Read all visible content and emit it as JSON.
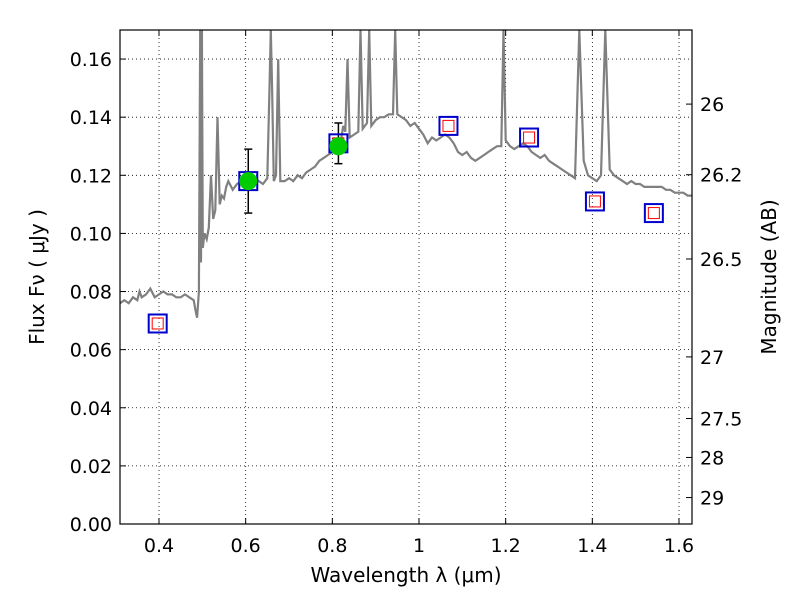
{
  "chart_data": {
    "type": "line",
    "xlabel": "Wavelength  λ (μm)",
    "ylabel": "Flux  Fν  ( μJy )",
    "y2label": "Magnitude (AB)",
    "xlim": [
      0.31,
      1.63
    ],
    "ylim": [
      0.0,
      0.17
    ],
    "grid": true,
    "x_ticks": [
      0.4,
      0.6,
      0.8,
      1.0,
      1.2,
      1.4,
      1.6
    ],
    "x_tick_labels": [
      "0.4",
      "0.6",
      "0.8",
      "1",
      "1.2",
      "1.4",
      "1.6"
    ],
    "y_ticks": [
      0.0,
      0.02,
      0.04,
      0.06,
      0.08,
      0.1,
      0.12,
      0.14,
      0.16
    ],
    "y_tick_labels": [
      "0.00",
      "0.02",
      "0.04",
      "0.06",
      "0.08",
      "0.10",
      "0.12",
      "0.14",
      "0.16"
    ],
    "y2_ticks": [
      {
        "label": "26",
        "flux": 0.1445
      },
      {
        "label": "26.2",
        "flux": 0.1202
      },
      {
        "label": "26.5",
        "flux": 0.0912
      },
      {
        "label": "27",
        "flux": 0.0575
      },
      {
        "label": "27.5",
        "flux": 0.0363
      },
      {
        "label": "28",
        "flux": 0.0229
      },
      {
        "label": "29",
        "flux": 0.0091
      }
    ],
    "colors": {
      "spectrum": "#808080",
      "measured_face": "#00cc00",
      "box_outer": "#0000cc",
      "box_inner": "#ff0000",
      "errorbar": "#000000"
    },
    "series": [
      {
        "kind": "spectrum",
        "points": [
          [
            0.31,
            0.076
          ],
          [
            0.32,
            0.077
          ],
          [
            0.33,
            0.076
          ],
          [
            0.34,
            0.078
          ],
          [
            0.35,
            0.077
          ],
          [
            0.355,
            0.08
          ],
          [
            0.36,
            0.078
          ],
          [
            0.37,
            0.079
          ],
          [
            0.38,
            0.081
          ],
          [
            0.39,
            0.078
          ],
          [
            0.4,
            0.079
          ],
          [
            0.41,
            0.08
          ],
          [
            0.42,
            0.079
          ],
          [
            0.43,
            0.079
          ],
          [
            0.44,
            0.078
          ],
          [
            0.45,
            0.078
          ],
          [
            0.46,
            0.079
          ],
          [
            0.47,
            0.078
          ],
          [
            0.48,
            0.077
          ],
          [
            0.485,
            0.073
          ],
          [
            0.488,
            0.071
          ],
          [
            0.492,
            0.08
          ],
          [
            0.495,
            0.17
          ],
          [
            0.497,
            0.09
          ],
          [
            0.499,
            0.17
          ],
          [
            0.501,
            0.095
          ],
          [
            0.505,
            0.1
          ],
          [
            0.51,
            0.098
          ],
          [
            0.515,
            0.102
          ],
          [
            0.52,
            0.12
          ],
          [
            0.525,
            0.105
          ],
          [
            0.53,
            0.108
          ],
          [
            0.535,
            0.14
          ],
          [
            0.54,
            0.11
          ],
          [
            0.545,
            0.113
          ],
          [
            0.55,
            0.112
          ],
          [
            0.555,
            0.116
          ],
          [
            0.56,
            0.118
          ],
          [
            0.57,
            0.115
          ],
          [
            0.58,
            0.117
          ],
          [
            0.59,
            0.118
          ],
          [
            0.6,
            0.116
          ],
          [
            0.61,
            0.118
          ],
          [
            0.62,
            0.119
          ],
          [
            0.63,
            0.118
          ],
          [
            0.64,
            0.117
          ],
          [
            0.65,
            0.119
          ],
          [
            0.655,
            0.15
          ],
          [
            0.658,
            0.17
          ],
          [
            0.661,
            0.15
          ],
          [
            0.665,
            0.118
          ],
          [
            0.67,
            0.12
          ],
          [
            0.675,
            0.16
          ],
          [
            0.68,
            0.118
          ],
          [
            0.69,
            0.118
          ],
          [
            0.7,
            0.119
          ],
          [
            0.71,
            0.118
          ],
          [
            0.72,
            0.12
          ],
          [
            0.73,
            0.119
          ],
          [
            0.74,
            0.121
          ],
          [
            0.75,
            0.122
          ],
          [
            0.76,
            0.123
          ],
          [
            0.77,
            0.125
          ],
          [
            0.78,
            0.126
          ],
          [
            0.79,
            0.127
          ],
          [
            0.8,
            0.128
          ],
          [
            0.81,
            0.13
          ],
          [
            0.82,
            0.132
          ],
          [
            0.825,
            0.137
          ],
          [
            0.83,
            0.135
          ],
          [
            0.835,
            0.16
          ],
          [
            0.84,
            0.133
          ],
          [
            0.85,
            0.134
          ],
          [
            0.86,
            0.135
          ],
          [
            0.865,
            0.17
          ],
          [
            0.87,
            0.136
          ],
          [
            0.88,
            0.138
          ],
          [
            0.885,
            0.17
          ],
          [
            0.89,
            0.137
          ],
          [
            0.9,
            0.139
          ],
          [
            0.91,
            0.14
          ],
          [
            0.92,
            0.14
          ],
          [
            0.93,
            0.141
          ],
          [
            0.94,
            0.141
          ],
          [
            0.945,
            0.17
          ],
          [
            0.95,
            0.141
          ],
          [
            0.96,
            0.14
          ],
          [
            0.97,
            0.139
          ],
          [
            0.98,
            0.137
          ],
          [
            0.99,
            0.138
          ],
          [
            1.0,
            0.136
          ],
          [
            1.01,
            0.134
          ],
          [
            1.02,
            0.131
          ],
          [
            1.03,
            0.133
          ],
          [
            1.04,
            0.132
          ],
          [
            1.05,
            0.133
          ],
          [
            1.06,
            0.134
          ],
          [
            1.07,
            0.133
          ],
          [
            1.08,
            0.131
          ],
          [
            1.09,
            0.128
          ],
          [
            1.1,
            0.127
          ],
          [
            1.11,
            0.128
          ],
          [
            1.12,
            0.126
          ],
          [
            1.13,
            0.125
          ],
          [
            1.14,
            0.126
          ],
          [
            1.15,
            0.127
          ],
          [
            1.16,
            0.128
          ],
          [
            1.17,
            0.129
          ],
          [
            1.18,
            0.13
          ],
          [
            1.19,
            0.13
          ],
          [
            1.195,
            0.17
          ],
          [
            1.2,
            0.132
          ],
          [
            1.21,
            0.13
          ],
          [
            1.22,
            0.129
          ],
          [
            1.23,
            0.13
          ],
          [
            1.24,
            0.131
          ],
          [
            1.25,
            0.13
          ],
          [
            1.26,
            0.128
          ],
          [
            1.27,
            0.127
          ],
          [
            1.28,
            0.126
          ],
          [
            1.29,
            0.127
          ],
          [
            1.3,
            0.125
          ],
          [
            1.31,
            0.124
          ],
          [
            1.32,
            0.123
          ],
          [
            1.33,
            0.122
          ],
          [
            1.34,
            0.121
          ],
          [
            1.35,
            0.12
          ],
          [
            1.36,
            0.119
          ],
          [
            1.37,
            0.17
          ],
          [
            1.38,
            0.125
          ],
          [
            1.39,
            0.12
          ],
          [
            1.4,
            0.119
          ],
          [
            1.41,
            0.118
          ],
          [
            1.42,
            0.12
          ],
          [
            1.43,
            0.17
          ],
          [
            1.44,
            0.122
          ],
          [
            1.45,
            0.12
          ],
          [
            1.46,
            0.119
          ],
          [
            1.47,
            0.118
          ],
          [
            1.48,
            0.117
          ],
          [
            1.49,
            0.118
          ],
          [
            1.5,
            0.117
          ],
          [
            1.51,
            0.117
          ],
          [
            1.52,
            0.116
          ],
          [
            1.53,
            0.116
          ],
          [
            1.54,
            0.116
          ],
          [
            1.55,
            0.116
          ],
          [
            1.56,
            0.116
          ],
          [
            1.57,
            0.115
          ],
          [
            1.58,
            0.115
          ],
          [
            1.59,
            0.114
          ],
          [
            1.6,
            0.114
          ],
          [
            1.61,
            0.114
          ],
          [
            1.62,
            0.113
          ],
          [
            1.63,
            0.113
          ]
        ]
      },
      {
        "kind": "model_photometry",
        "points": [
          {
            "x": 0.397,
            "y": 0.069
          },
          {
            "x": 0.606,
            "y": 0.118
          },
          {
            "x": 0.814,
            "y": 0.131
          },
          {
            "x": 1.068,
            "y": 0.137
          },
          {
            "x": 1.254,
            "y": 0.133
          },
          {
            "x": 1.406,
            "y": 0.111
          },
          {
            "x": 1.542,
            "y": 0.107
          }
        ]
      },
      {
        "kind": "measured",
        "points": [
          {
            "x": 0.606,
            "y": 0.118,
            "ylo": 0.107,
            "yhi": 0.129
          },
          {
            "x": 0.814,
            "y": 0.13,
            "ylo": 0.124,
            "yhi": 0.138
          }
        ]
      }
    ]
  }
}
